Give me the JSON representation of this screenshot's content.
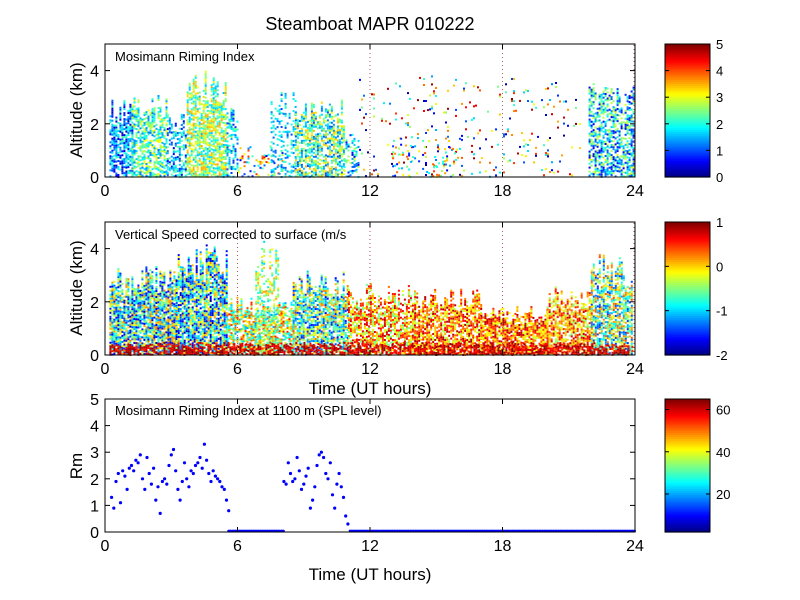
{
  "figure_title": "Steamboat MAPR 010222",
  "chart_data": [
    {
      "type": "heatmap",
      "title": "Mosimann Riming Index",
      "xlabel": "",
      "ylabel": "Altitude (km)",
      "xlim": [
        0,
        24
      ],
      "ylim": [
        0,
        5
      ],
      "xticks": [
        0,
        6,
        12,
        18,
        24
      ],
      "yticks": [
        0,
        2,
        4
      ],
      "colorbar": {
        "min": 0,
        "max": 5,
        "ticks": [
          0,
          1,
          2,
          3,
          4,
          5
        ]
      },
      "dotted_time_markers": [
        12,
        18,
        24
      ],
      "echo_segments": [
        {
          "t0": 0.2,
          "t1": 1.2,
          "top": 3.0,
          "vmin": 0.3,
          "vmax": 2.3,
          "dens": 0.7
        },
        {
          "t0": 1.2,
          "t1": 2.8,
          "top": 3.1,
          "vmin": 1.2,
          "vmax": 3.2,
          "dens": 0.65
        },
        {
          "t0": 2.8,
          "t1": 3.7,
          "top": 2.4,
          "vmin": 0.5,
          "vmax": 2.6,
          "dens": 0.55
        },
        {
          "t0": 3.7,
          "t1": 5.5,
          "top": 4.0,
          "vmin": 1.5,
          "vmax": 3.6,
          "dens": 0.75
        },
        {
          "t0": 5.5,
          "t1": 6.0,
          "top": 2.8,
          "vmin": 0.8,
          "vmax": 2.5,
          "dens": 0.45
        },
        {
          "t0": 6.0,
          "t1": 8.0,
          "top": 1.2,
          "vmin": 0.2,
          "vmax": 4.5,
          "dens": 0.18
        },
        {
          "t0": 7.5,
          "t1": 8.6,
          "top": 3.4,
          "vmin": 1.0,
          "vmax": 2.3,
          "dens": 0.35
        },
        {
          "t0": 8.6,
          "t1": 10.8,
          "top": 3.0,
          "vmin": 1.0,
          "vmax": 3.5,
          "dens": 0.65
        },
        {
          "t0": 10.8,
          "t1": 11.5,
          "top": 1.8,
          "vmin": 0.5,
          "vmax": 3.0,
          "dens": 0.3
        },
        {
          "t0": 11.5,
          "t1": 21.5,
          "top": 4.0,
          "vmin": 0.0,
          "vmax": 5.0,
          "dens": 0.05
        },
        {
          "t0": 13.0,
          "t1": 16.0,
          "top": 1.5,
          "vmin": 0.5,
          "vmax": 4.0,
          "dens": 0.12
        },
        {
          "t0": 21.9,
          "t1": 23.9,
          "top": 3.6,
          "vmin": 0.5,
          "vmax": 3.0,
          "dens": 0.6
        }
      ]
    },
    {
      "type": "heatmap",
      "title": "Vertical Speed corrected to surface (m/s",
      "xlabel": "Time (UT hours)",
      "ylabel": "Altitude (km)",
      "xlim": [
        0,
        24
      ],
      "ylim": [
        0,
        5
      ],
      "xticks": [
        0,
        6,
        12,
        18,
        24
      ],
      "yticks": [
        0,
        2,
        4
      ],
      "colorbar": {
        "min": -2,
        "max": 1,
        "ticks": [
          -2,
          -1,
          0,
          1
        ]
      },
      "dotted_time_markers": [
        6,
        12,
        18,
        24
      ],
      "echo_segments": [
        {
          "t0": 0.2,
          "t1": 3.2,
          "top": 3.4,
          "vmin": -1.8,
          "vmax": 0.3,
          "dens": 0.85
        },
        {
          "t0": 3.2,
          "t1": 5.5,
          "top": 4.2,
          "vmin": -1.9,
          "vmax": 0.2,
          "dens": 0.85
        },
        {
          "t0": 5.5,
          "t1": 8.5,
          "top": 2.2,
          "vmin": -1.2,
          "vmax": 0.6,
          "dens": 0.7
        },
        {
          "t0": 6.8,
          "t1": 7.8,
          "top": 4.3,
          "vmin": -1.0,
          "vmax": 0.2,
          "dens": 0.4
        },
        {
          "t0": 8.5,
          "t1": 11.0,
          "top": 3.2,
          "vmin": -1.6,
          "vmax": 0.3,
          "dens": 0.8
        },
        {
          "t0": 11.0,
          "t1": 14.0,
          "top": 2.7,
          "vmin": -0.6,
          "vmax": 0.8,
          "dens": 0.7
        },
        {
          "t0": 14.0,
          "t1": 17.0,
          "top": 2.5,
          "vmin": -0.4,
          "vmax": 0.9,
          "dens": 0.75
        },
        {
          "t0": 17.0,
          "t1": 20.0,
          "top": 1.9,
          "vmin": -0.3,
          "vmax": 0.9,
          "dens": 0.8
        },
        {
          "t0": 20.0,
          "t1": 22.0,
          "top": 2.6,
          "vmin": -0.5,
          "vmax": 0.8,
          "dens": 0.75
        },
        {
          "t0": 22.0,
          "t1": 23.9,
          "top": 3.8,
          "vmin": -1.5,
          "vmax": 0.4,
          "dens": 0.75
        },
        {
          "t0": 0.2,
          "t1": 23.9,
          "top": 0.5,
          "vmin": 0.5,
          "vmax": 1.0,
          "dens": 0.6
        }
      ]
    },
    {
      "type": "scatter",
      "title": "Mosimann Riming Index at 1100 m (SPL level)",
      "xlabel": "Time (UT hours)",
      "ylabel": "Rm",
      "xlim": [
        0,
        24
      ],
      "ylim": [
        0,
        5
      ],
      "xticks": [
        0,
        6,
        12,
        18,
        24
      ],
      "yticks": [
        0,
        1,
        2,
        3,
        4,
        5
      ],
      "colorbar": {
        "min": 2,
        "max": 65,
        "ticks": [
          20,
          40,
          60
        ]
      },
      "marker_color": "#0000ff",
      "x": [
        0.3,
        0.4,
        0.5,
        0.6,
        0.7,
        0.8,
        0.9,
        1.0,
        1.1,
        1.2,
        1.3,
        1.4,
        1.5,
        1.6,
        1.7,
        1.8,
        1.9,
        2.0,
        2.1,
        2.2,
        2.3,
        2.4,
        2.5,
        2.6,
        2.7,
        2.8,
        2.9,
        3.0,
        3.1,
        3.2,
        3.3,
        3.4,
        3.5,
        3.6,
        3.7,
        3.8,
        3.9,
        4.0,
        4.1,
        4.2,
        4.3,
        4.4,
        4.5,
        4.6,
        4.7,
        4.8,
        4.9,
        5.0,
        5.1,
        5.2,
        5.3,
        5.4,
        5.5,
        5.6,
        8.1,
        8.2,
        8.3,
        8.4,
        8.5,
        8.6,
        8.7,
        8.8,
        8.9,
        9.0,
        9.1,
        9.2,
        9.3,
        9.4,
        9.5,
        9.6,
        9.7,
        9.8,
        9.9,
        10.0,
        10.1,
        10.2,
        10.3,
        10.4,
        10.5,
        10.6,
        10.7,
        10.8,
        10.9,
        11.0
      ],
      "y": [
        1.3,
        0.9,
        1.9,
        2.2,
        1.1,
        2.3,
        2.1,
        1.6,
        2.4,
        2.5,
        2.3,
        2.7,
        2.6,
        2.9,
        2.0,
        1.6,
        2.8,
        2.2,
        1.8,
        2.4,
        1.2,
        1.7,
        0.7,
        1.9,
        2.0,
        1.8,
        2.5,
        2.9,
        3.1,
        2.3,
        1.6,
        1.2,
        1.9,
        2.6,
        2.0,
        1.7,
        2.3,
        2.2,
        2.5,
        2.6,
        2.8,
        2.4,
        3.3,
        2.7,
        2.2,
        1.9,
        2.3,
        2.1,
        2.0,
        1.9,
        1.7,
        1.6,
        1.2,
        0.8,
        1.9,
        1.8,
        2.6,
        2.2,
        1.9,
        2.0,
        2.8,
        2.3,
        1.6,
        1.8,
        2.1,
        2.4,
        0.9,
        1.2,
        1.7,
        2.5,
        2.9,
        3.0,
        2.8,
        2.2,
        2.0,
        2.6,
        1.4,
        0.9,
        1.8,
        2.2,
        1.7,
        1.3,
        0.6,
        0.3
      ],
      "zero_segments": [
        [
          5.6,
          8.1
        ],
        [
          11.1,
          24.0
        ]
      ]
    }
  ]
}
